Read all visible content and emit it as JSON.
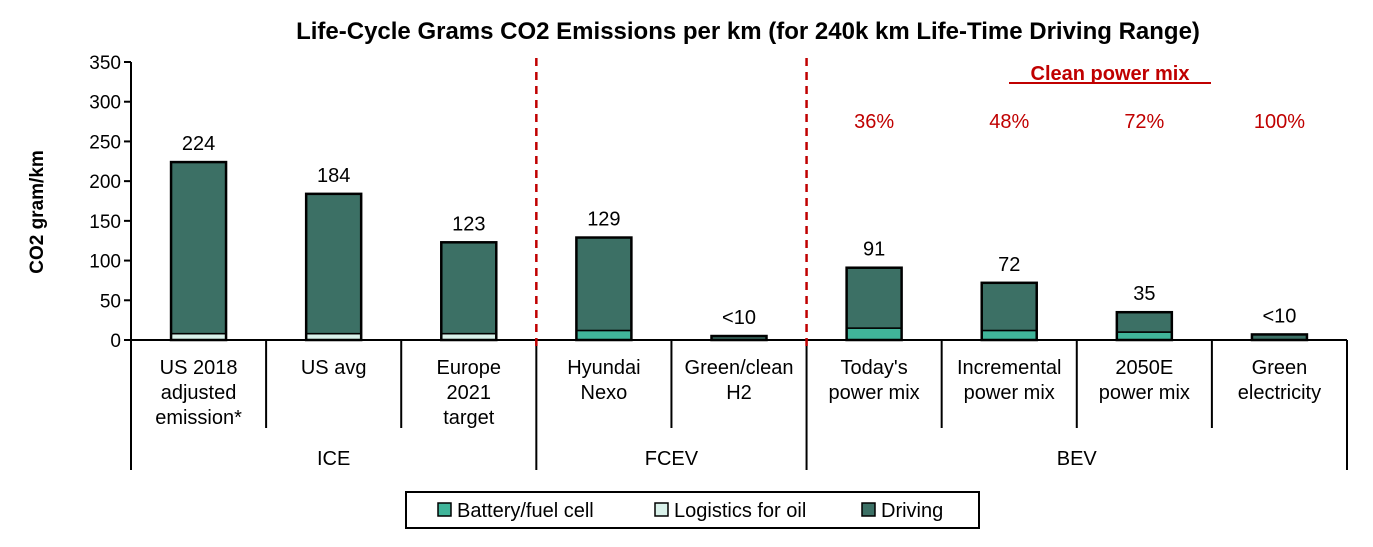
{
  "chart_data": {
    "type": "bar",
    "stacked": true,
    "title": "Life-Cycle Grams CO2 Emissions per km (for 240k km Life-Time Driving Range)",
    "ylabel": "CO2 gram/km",
    "ylim": [
      0,
      350
    ],
    "yticks": [
      "0",
      "50",
      "100",
      "150",
      "200",
      "250",
      "300",
      "350"
    ],
    "categories": [
      [
        "US 2018",
        "adjusted",
        "emission*"
      ],
      [
        "US avg"
      ],
      [
        "Europe",
        "2021",
        "target"
      ],
      [
        "Hyundai",
        "Nexo"
      ],
      [
        "Green/clean",
        "H2"
      ],
      [
        "Today's",
        "power mix"
      ],
      [
        "Incremental",
        "power mix"
      ],
      [
        "2050E",
        "power mix"
      ],
      [
        "Green",
        "electricity"
      ]
    ],
    "groups": [
      {
        "label": "ICE",
        "start": 0,
        "end": 2
      },
      {
        "label": "FCEV",
        "start": 3,
        "end": 4
      },
      {
        "label": "BEV",
        "start": 5,
        "end": 8
      }
    ],
    "series": [
      {
        "name": "Battery/fuel cell",
        "color": "#40b59a",
        "values": [
          0,
          0,
          0,
          12,
          0,
          15,
          12,
          10,
          0
        ]
      },
      {
        "name": "Logistics for oil",
        "color": "#d9f1ea",
        "values": [
          8,
          8,
          8,
          0,
          0,
          0,
          0,
          0,
          0
        ]
      },
      {
        "name": "Driving",
        "color": "#3c7065",
        "values": [
          216,
          176,
          115,
          117,
          5,
          76,
          60,
          25,
          7
        ]
      }
    ],
    "data_labels": [
      "224",
      "184",
      "123",
      "129",
      "<10",
      "91",
      "72",
      "35",
      "<10"
    ],
    "annotation_title": "Clean power mix",
    "clean_power_mix": [
      "",
      "",
      "",
      "",
      "",
      "36%",
      "48%",
      "72%",
      "100%"
    ],
    "grid": false,
    "legend_position": "bottom"
  }
}
